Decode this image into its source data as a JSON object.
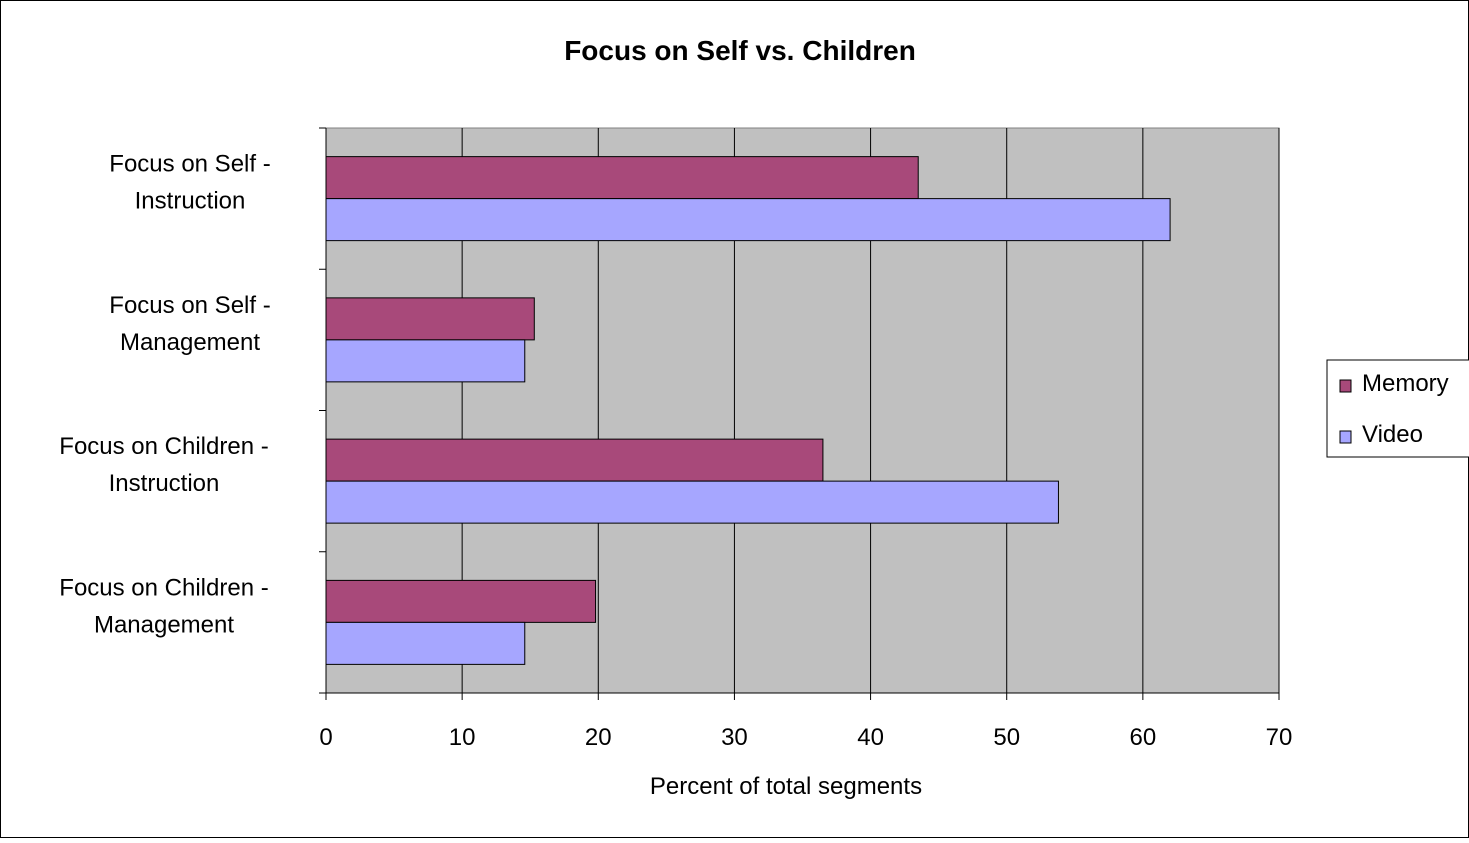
{
  "chart_data": {
    "type": "bar",
    "orientation": "horizontal",
    "title": "Focus on Self vs. Children",
    "xlabel": "Percent of total segments",
    "ylabel": "",
    "categories": [
      [
        "Focus on Self -",
        "Instruction"
      ],
      [
        "Focus on Self -",
        "Management"
      ],
      [
        "Focus on Children -",
        "Instruction"
      ],
      [
        "Focus on Children -",
        "Management"
      ]
    ],
    "series": [
      {
        "name": "Memory",
        "color": "#a8497a",
        "values": [
          43.5,
          15.3,
          36.5,
          19.8
        ]
      },
      {
        "name": "Video",
        "color": "#a6a6ff",
        "values": [
          62,
          14.6,
          53.8,
          14.6
        ]
      }
    ],
    "xlim": [
      0,
      70
    ],
    "xticks": [
      "0",
      "10",
      "20",
      "30",
      "40",
      "50",
      "60",
      "70"
    ],
    "plot_background": "#c0c0c0",
    "grid": true,
    "legend_position": "right"
  }
}
